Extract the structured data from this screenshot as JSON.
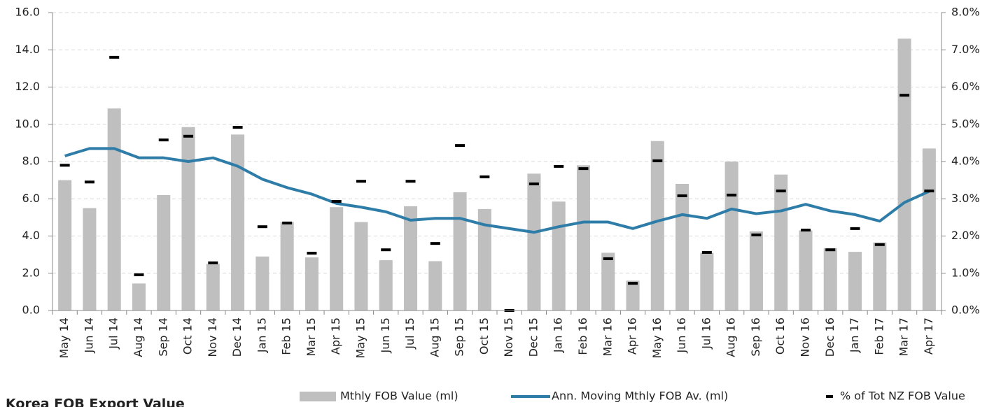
{
  "chart_data": {
    "type": "bar_line_marker",
    "title": "Korea FOB Export Value",
    "categories": [
      "May 14",
      "Jun 14",
      "Jul 14",
      "Aug 14",
      "Sep 14",
      "Oct 14",
      "Nov 14",
      "Dec 14",
      "Jan 15",
      "Feb 15",
      "Mar 15",
      "Apr 15",
      "May 15",
      "Jun 15",
      "Jul 15",
      "Aug 15",
      "Sep 15",
      "Oct 15",
      "Nov 15",
      "Dec 15",
      "Jan 16",
      "Feb 16",
      "Mar 16",
      "Apr 16",
      "May 16",
      "Jun 16",
      "Jul 16",
      "Aug 16",
      "Sep 16",
      "Oct 16",
      "Nov 16",
      "Dec 16",
      "Jan 17",
      "Feb 17",
      "Mar 17",
      "Apr 17"
    ],
    "series": [
      {
        "name": "Mthly FOB Value (ml)",
        "type": "bar",
        "color": "#bfbfbf",
        "values": [
          7.0,
          5.5,
          10.85,
          1.45,
          6.2,
          9.85,
          2.5,
          9.45,
          2.9,
          4.75,
          2.85,
          5.55,
          4.75,
          2.7,
          5.6,
          2.65,
          6.35,
          5.45,
          0,
          7.35,
          5.85,
          7.8,
          3.1,
          1.6,
          9.1,
          6.8,
          3.1,
          8.0,
          4.25,
          7.3,
          4.3,
          3.35,
          3.15,
          3.65,
          14.6,
          8.7
        ]
      },
      {
        "name": "Ann. Moving Mthly FOB Av. (ml)",
        "type": "line",
        "color": "#2e7ca8",
        "values": [
          8.3,
          8.7,
          8.7,
          8.2,
          8.2,
          8.0,
          8.2,
          7.75,
          7.05,
          6.6,
          6.25,
          5.75,
          5.55,
          5.3,
          4.85,
          4.95,
          4.95,
          4.6,
          4.4,
          4.2,
          4.5,
          4.75,
          4.75,
          4.4,
          4.8,
          5.15,
          4.95,
          5.45,
          5.2,
          5.35,
          5.7,
          5.35,
          5.15,
          4.8,
          5.8,
          6.4
        ]
      },
      {
        "name": "% of Tot NZ FOB Value",
        "type": "marker",
        "axis": "y2",
        "color": "#000000",
        "values": [
          3.9,
          3.45,
          6.8,
          0.96,
          4.58,
          4.68,
          1.28,
          4.92,
          2.25,
          2.35,
          1.54,
          2.93,
          3.47,
          1.63,
          3.47,
          1.8,
          4.43,
          3.59,
          0,
          3.4,
          3.87,
          3.81,
          1.39,
          0.73,
          4.02,
          3.08,
          1.56,
          3.1,
          2.03,
          3.21,
          2.16,
          1.63,
          2.2,
          1.77,
          5.78,
          3.21
        ]
      }
    ],
    "ylim": [
      0,
      16
    ],
    "yticks": [
      {
        "value": 0,
        "label": "0.0"
      },
      {
        "value": 2,
        "label": "2.0"
      },
      {
        "value": 4,
        "label": "4.0"
      },
      {
        "value": 6,
        "label": "6.0"
      },
      {
        "value": 8,
        "label": "8.0"
      },
      {
        "value": 10,
        "label": "10.0"
      },
      {
        "value": 12,
        "label": "12.0"
      },
      {
        "value": 14,
        "label": "14.0"
      },
      {
        "value": 16,
        "label": "16.0"
      }
    ],
    "y2lim": [
      0,
      8
    ],
    "y2ticks": [
      {
        "value": 0,
        "label": "0.0%"
      },
      {
        "value": 1,
        "label": "1.0%"
      },
      {
        "value": 2,
        "label": "2.0%"
      },
      {
        "value": 3,
        "label": "3.0%"
      },
      {
        "value": 4,
        "label": "4.0%"
      },
      {
        "value": 5,
        "label": "5.0%"
      },
      {
        "value": 6,
        "label": "6.0%"
      },
      {
        "value": 7,
        "label": "7.0%"
      },
      {
        "value": 8,
        "label": "8.0%"
      }
    ],
    "grid": true
  }
}
